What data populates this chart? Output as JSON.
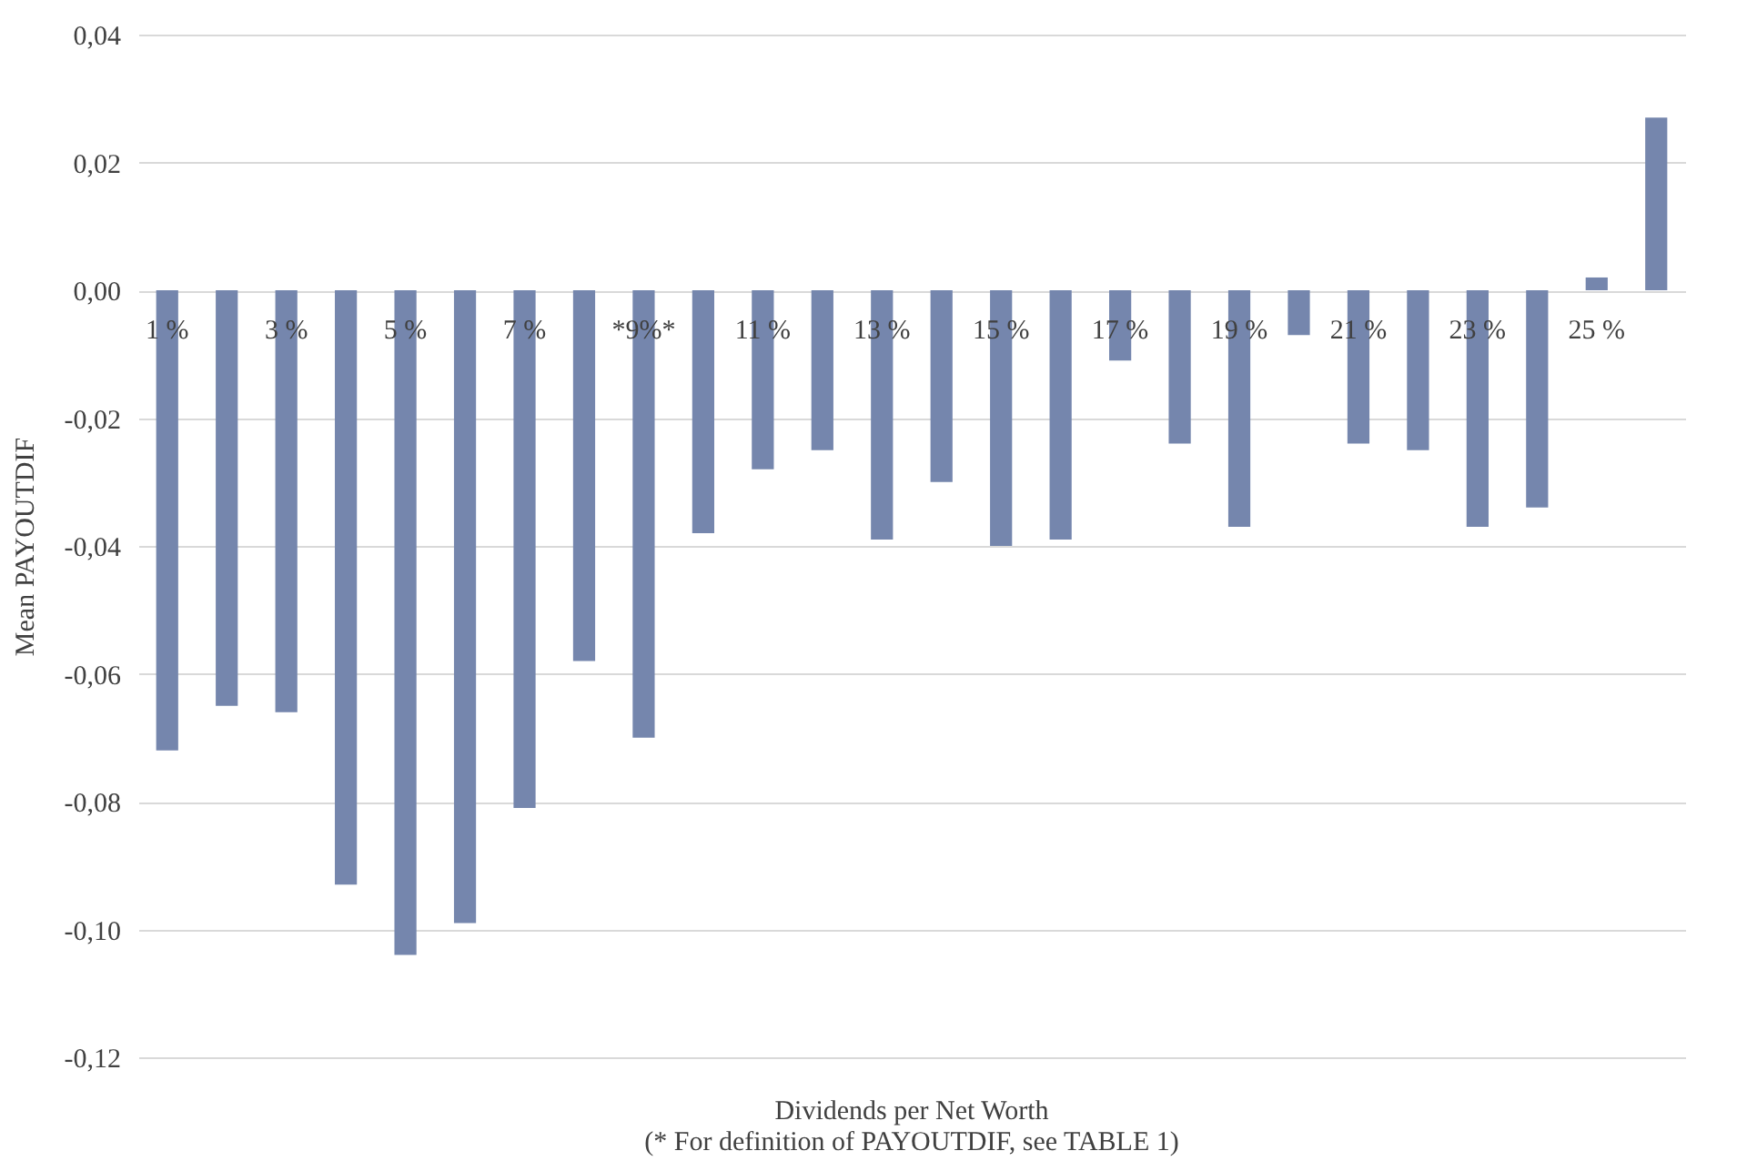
{
  "chart_data": {
    "type": "bar",
    "xlabel": "Dividends per Net Worth",
    "ylabel": "Mean PAYOUTDIF",
    "annotations": [
      "(* For definition of PAYOUTDIF, see TABLE 1)"
    ],
    "categories": [
      "1 %",
      null,
      "3 %",
      null,
      "5 %",
      null,
      "7 %",
      null,
      "*9%*",
      null,
      "11 %",
      null,
      "13 %",
      null,
      "15 %",
      null,
      "17 %",
      null,
      "19 %",
      null,
      "21 %",
      null,
      "23 %",
      null,
      "25 %",
      null
    ],
    "values": [
      -0.072,
      -0.065,
      -0.066,
      -0.093,
      -0.104,
      -0.099,
      -0.081,
      -0.058,
      -0.07,
      -0.038,
      -0.028,
      -0.025,
      -0.039,
      -0.03,
      -0.04,
      -0.039,
      -0.011,
      -0.024,
      -0.037,
      -0.007,
      -0.024,
      -0.025,
      -0.037,
      -0.034,
      0.002,
      0.027
    ],
    "color": "#7586ad",
    "ylim": [
      -0.12,
      0.04
    ],
    "yticks": [
      {
        "value": -0.12,
        "label": "-0,12"
      },
      {
        "value": -0.1,
        "label": "-0,10"
      },
      {
        "value": -0.08,
        "label": "-0,08"
      },
      {
        "value": -0.06,
        "label": "-0,06"
      },
      {
        "value": -0.04,
        "label": "-0,04"
      },
      {
        "value": -0.02,
        "label": "-0,02"
      },
      {
        "value": 0,
        "label": "0,00"
      },
      {
        "value": 0.02,
        "label": "0,02"
      },
      {
        "value": 0.04,
        "label": "0,04"
      }
    ],
    "grid": "y"
  }
}
